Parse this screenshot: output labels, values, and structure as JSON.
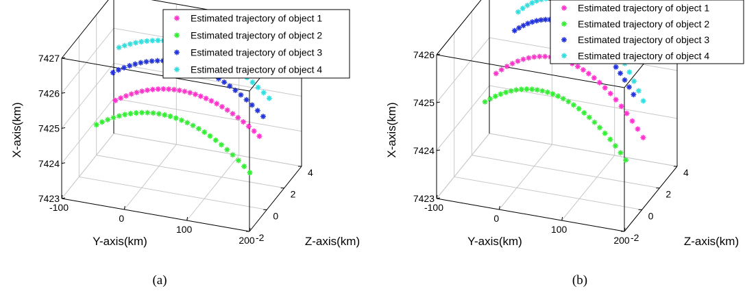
{
  "chart_data": [
    {
      "type": "scatter",
      "panel_label": "(a)",
      "xlabel": "Y-axis(km)",
      "ylabel": "Z-axis(km)",
      "zlabel": "X-axis(km)",
      "xlim": [
        -100,
        200
      ],
      "ylim": [
        -2,
        4
      ],
      "zlim": [
        7423,
        7427
      ],
      "xticks": [
        "-100",
        "0",
        "100",
        "200"
      ],
      "yticks": [
        "-2",
        "0",
        "2",
        "4"
      ],
      "zticks": [
        "7423",
        "7424",
        "7425",
        "7426",
        "7427"
      ],
      "grid": true,
      "legend_position": "top-right",
      "series": [
        {
          "name": "Estimated trajectory of object 1",
          "color": "#ff33cc",
          "marker": "*",
          "y_range": [
            -60,
            170
          ],
          "z": 1.3,
          "x_start": 7424.9,
          "x_peak": 7425.5,
          "x_end": 7424.6
        },
        {
          "name": "Estimated trajectory of object 2",
          "color": "#33ee33",
          "marker": "*",
          "y_range": [
            -75,
            170
          ],
          "z": 0.2,
          "x_start": 7424.5,
          "x_peak": 7425.1,
          "x_end": 7423.9
        },
        {
          "name": "Estimated trajectory of object 3",
          "color": "#2233dd",
          "marker": "*",
          "y_range": [
            -75,
            165
          ],
          "z": 2.1,
          "x_start": 7425.4,
          "x_peak": 7426.0,
          "x_end": 7424.9
        },
        {
          "name": "Estimated trajectory of object 4",
          "color": "#33dddd",
          "marker": "*",
          "y_range": [
            -75,
            165
          ],
          "z": 2.8,
          "x_start": 7425.9,
          "x_peak": 7426.3,
          "x_end": 7425.2
        }
      ]
    },
    {
      "type": "scatter",
      "panel_label": "(b)",
      "xlabel": "Y-axis(km)",
      "ylabel": "Z-axis(km)",
      "zlabel": "X-axis(km)",
      "xlim": [
        -100,
        200
      ],
      "ylim": [
        -2,
        4
      ],
      "zlim": [
        7423,
        7426
      ],
      "xticks": [
        "-100",
        "0",
        "100",
        "200"
      ],
      "yticks": [
        "-2",
        "0",
        "2",
        "4"
      ],
      "zticks": [
        "7423",
        "7424",
        "7425",
        "7426"
      ],
      "grid": true,
      "legend_position": "top-right",
      "series": [
        {
          "name": "Estimated trajectory of object 1",
          "color": "#ff33cc",
          "marker": "*",
          "y_range": [
            -50,
            185
          ],
          "z": 1.2,
          "x_start": 7425.0,
          "x_peak": 7425.5,
          "x_end": 7424.2
        },
        {
          "name": "Estimated trajectory of object 2",
          "color": "#33ee33",
          "marker": "*",
          "y_range": [
            -55,
            170
          ],
          "z": 0.3,
          "x_start": 7424.6,
          "x_peak": 7425.0,
          "x_end": 7423.9
        },
        {
          "name": "Estimated trajectory of object 3",
          "color": "#2233dd",
          "marker": "*",
          "y_range": [
            -40,
            150
          ],
          "z": 2.6,
          "x_start": 7425.6,
          "x_peak": 7425.9,
          "x_end": 7424.7
        },
        {
          "name": "Estimated trajectory of object 4",
          "color": "#33dddd",
          "marker": "*",
          "y_range": [
            -40,
            160
          ],
          "z": 3.0,
          "x_start": 7425.9,
          "x_peak": 7426.2,
          "x_end": 7424.5
        }
      ]
    }
  ]
}
